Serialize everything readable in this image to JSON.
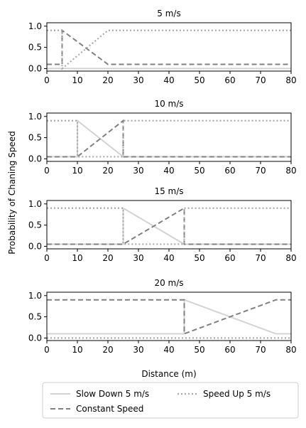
{
  "chart_data": [
    {
      "type": "line",
      "title": "5 m/s",
      "xlim": [
        0,
        80
      ],
      "ylim": [
        0,
        1
      ],
      "xticks": [
        "0",
        "10",
        "20",
        "30",
        "40",
        "50",
        "60",
        "70",
        "80"
      ],
      "yticks": [
        "0.0",
        "0.5",
        "1.0"
      ],
      "series": [
        {
          "name": "Slow Down 5 m/s",
          "style": "solid",
          "color": "#d3d3d3",
          "points": [
            [
              0,
              0.0
            ],
            [
              80,
              0.0
            ]
          ]
        },
        {
          "name": "Constant Speed",
          "style": "dashed",
          "color": "#808080",
          "points": [
            [
              0,
              0.1
            ],
            [
              5,
              0.1
            ],
            [
              5,
              0.9
            ],
            [
              20,
              0.1
            ],
            [
              80,
              0.1
            ]
          ]
        },
        {
          "name": "Speed Up 5 m/s",
          "style": "dotted",
          "color": "#a9a9a9",
          "points": [
            [
              0,
              0.9
            ],
            [
              5,
              0.9
            ],
            [
              5,
              0.0
            ],
            [
              20,
              0.9
            ],
            [
              80,
              0.9
            ]
          ]
        }
      ]
    },
    {
      "type": "line",
      "title": "10 m/s",
      "xlim": [
        0,
        80
      ],
      "ylim": [
        0,
        1
      ],
      "xticks": [
        "0",
        "10",
        "20",
        "30",
        "40",
        "50",
        "60",
        "70",
        "80"
      ],
      "yticks": [
        "0.0",
        "0.5",
        "1.0"
      ],
      "series": [
        {
          "name": "Slow Down 5 m/s",
          "style": "solid",
          "color": "#d3d3d3",
          "points": [
            [
              0,
              0.05
            ],
            [
              10,
              0.05
            ],
            [
              10,
              0.9
            ],
            [
              25,
              0.05
            ],
            [
              80,
              0.05
            ]
          ]
        },
        {
          "name": "Constant Speed",
          "style": "dashed",
          "color": "#808080",
          "points": [
            [
              0,
              0.05
            ],
            [
              10,
              0.05
            ],
            [
              25,
              0.9
            ],
            [
              25,
              0.05
            ],
            [
              80,
              0.05
            ]
          ]
        },
        {
          "name": "Speed Up 5 m/s",
          "style": "dotted",
          "color": "#a9a9a9",
          "points": [
            [
              0,
              0.9
            ],
            [
              10,
              0.9
            ],
            [
              10,
              0.05
            ],
            [
              25,
              0.05
            ],
            [
              25,
              0.9
            ],
            [
              80,
              0.9
            ]
          ]
        }
      ]
    },
    {
      "type": "line",
      "title": "15 m/s",
      "xlim": [
        0,
        80
      ],
      "ylim": [
        0,
        1
      ],
      "xticks": [
        "0",
        "10",
        "20",
        "30",
        "40",
        "50",
        "60",
        "70",
        "80"
      ],
      "yticks": [
        "0.0",
        "0.5",
        "1.0"
      ],
      "series": [
        {
          "name": "Slow Down 5 m/s",
          "style": "solid",
          "color": "#d3d3d3",
          "points": [
            [
              0,
              0.05
            ],
            [
              25,
              0.05
            ],
            [
              25,
              0.9
            ],
            [
              45,
              0.05
            ],
            [
              80,
              0.05
            ]
          ]
        },
        {
          "name": "Constant Speed",
          "style": "dashed",
          "color": "#808080",
          "points": [
            [
              0,
              0.05
            ],
            [
              25,
              0.05
            ],
            [
              45,
              0.9
            ],
            [
              45,
              0.05
            ],
            [
              80,
              0.05
            ]
          ]
        },
        {
          "name": "Speed Up 5 m/s",
          "style": "dotted",
          "color": "#a9a9a9",
          "points": [
            [
              0,
              0.9
            ],
            [
              25,
              0.9
            ],
            [
              25,
              0.05
            ],
            [
              45,
              0.05
            ],
            [
              45,
              0.9
            ],
            [
              80,
              0.9
            ]
          ]
        }
      ]
    },
    {
      "type": "line",
      "title": "20 m/s",
      "xlim": [
        0,
        80
      ],
      "ylim": [
        0,
        1
      ],
      "xticks": [
        "0",
        "10",
        "20",
        "30",
        "40",
        "50",
        "60",
        "70",
        "80"
      ],
      "yticks": [
        "0.0",
        "0.5",
        "1.0"
      ],
      "series": [
        {
          "name": "Slow Down 5 m/s",
          "style": "solid",
          "color": "#d3d3d3",
          "points": [
            [
              0,
              0.1
            ],
            [
              45,
              0.1
            ],
            [
              45,
              0.9
            ],
            [
              75,
              0.1
            ],
            [
              80,
              0.1
            ]
          ]
        },
        {
          "name": "Constant Speed",
          "style": "dashed",
          "color": "#808080",
          "points": [
            [
              0,
              0.9
            ],
            [
              45,
              0.9
            ],
            [
              45,
              0.1
            ],
            [
              75,
              0.9
            ],
            [
              80,
              0.9
            ]
          ]
        },
        {
          "name": "Speed Up 5 m/s",
          "style": "dotted",
          "color": "#a9a9a9",
          "points": [
            [
              0,
              0.0
            ],
            [
              80,
              0.0
            ]
          ]
        }
      ]
    }
  ],
  "labels": {
    "ylabel": "Probability of Chaning Speed",
    "xlabel": "Distance (m)"
  },
  "legend": {
    "placement": "bottom",
    "items": [
      {
        "label": "Slow Down 5 m/s",
        "style": "solid",
        "color": "#d3d3d3"
      },
      {
        "label": "Speed Up 5 m/s",
        "style": "dotted",
        "color": "#a9a9a9"
      },
      {
        "label": "Constant Speed",
        "style": "dashed",
        "color": "#808080"
      }
    ]
  }
}
